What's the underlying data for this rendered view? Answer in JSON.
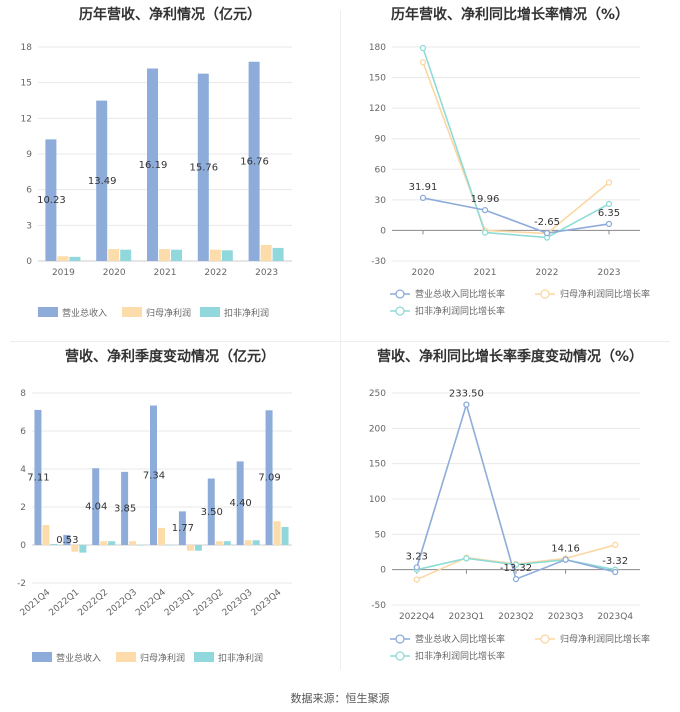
{
  "source": "数据来源：恒生聚源",
  "colors": {
    "revenue": "#8eacda",
    "parent_profit": "#fbdcaa",
    "deducted_profit": "#90d8db",
    "revenue_line": "#8eacda",
    "parent_line": "#fbd7a3",
    "deducted_line": "#8fdcd6",
    "grid": "#e8e8e8",
    "axis_text": "#666666"
  },
  "chart_data": [
    {
      "type": "bar",
      "title": "历年营收、净利情况（亿元）",
      "categories": [
        "2019",
        "2020",
        "2021",
        "2022",
        "2023"
      ],
      "ylim": [
        0,
        18
      ],
      "yticks": [
        0,
        3,
        6,
        9,
        12,
        15,
        18
      ],
      "grid": true,
      "legend_position": "bottom",
      "series": [
        {
          "name": "营业总收入",
          "values": [
            10.23,
            13.49,
            16.19,
            15.76,
            16.76
          ],
          "labels": [
            "10.23",
            "13.49",
            "16.19",
            "15.76",
            "16.76"
          ]
        },
        {
          "name": "归母净利润",
          "values": [
            0.4,
            1.0,
            1.0,
            0.95,
            1.35
          ]
        },
        {
          "name": "扣非净利润",
          "values": [
            0.35,
            0.95,
            0.95,
            0.9,
            1.1
          ]
        }
      ]
    },
    {
      "type": "line",
      "title": "历年营收、净利同比增长率情况（%）",
      "categories": [
        "2020",
        "2021",
        "2022",
        "2023"
      ],
      "ylim": [
        -30,
        180
      ],
      "yticks": [
        -30,
        0,
        30,
        60,
        90,
        120,
        150,
        180
      ],
      "grid": true,
      "legend_position": "bottom",
      "series": [
        {
          "name": "营业总收入同比增长率",
          "values": [
            31.91,
            19.96,
            -2.65,
            6.35
          ],
          "labels": [
            "31.91",
            "19.96",
            "-2.65",
            "6.35"
          ]
        },
        {
          "name": "归母净利润同比增长率",
          "values": [
            165,
            0,
            -3,
            47
          ]
        },
        {
          "name": "扣非净利润同比增长率",
          "values": [
            179,
            -2,
            -7,
            26
          ]
        }
      ]
    },
    {
      "type": "bar",
      "title": "营收、净利季度变动情况（亿元）",
      "categories": [
        "2021Q4",
        "2022Q1",
        "2022Q2",
        "2022Q3",
        "2022Q4",
        "2023Q1",
        "2023Q2",
        "2023Q3",
        "2023Q4"
      ],
      "ylim": [
        -2,
        8
      ],
      "yticks": [
        -2,
        0,
        2,
        4,
        6,
        8
      ],
      "grid": true,
      "legend_position": "bottom",
      "series": [
        {
          "name": "营业总收入",
          "values": [
            7.11,
            0.53,
            4.04,
            3.85,
            7.34,
            1.77,
            3.5,
            4.4,
            7.09
          ],
          "labels": [
            "7.11",
            "0.53",
            "4.04",
            "3.85",
            "7.34",
            "1.77",
            "3.50",
            "4.40",
            "7.09"
          ]
        },
        {
          "name": "归母净利润",
          "values": [
            1.05,
            -0.35,
            0.2,
            0.2,
            0.9,
            -0.3,
            0.2,
            0.25,
            1.25
          ]
        },
        {
          "name": "扣非净利润",
          "values": [
            0.05,
            -0.4,
            0.2,
            0.0,
            0.0,
            -0.3,
            0.2,
            0.25,
            0.95
          ]
        }
      ]
    },
    {
      "type": "line",
      "title": "营收、净利同比增长率季度变动情况（%）",
      "categories": [
        "2022Q4",
        "2023Q1",
        "2023Q2",
        "2023Q3",
        "2023Q4"
      ],
      "ylim": [
        -50,
        250
      ],
      "yticks": [
        -50,
        0,
        50,
        100,
        150,
        200,
        250
      ],
      "grid": true,
      "legend_position": "bottom",
      "series": [
        {
          "name": "营业总收入同比增长率",
          "values": [
            3.23,
            233.5,
            -13.32,
            14.16,
            -3.32
          ],
          "labels": [
            "3.23",
            "233.50",
            "-13.32",
            "14.16",
            "-3.32"
          ]
        },
        {
          "name": "归母净利润同比增长率",
          "values": [
            -14,
            17,
            8,
            16,
            35
          ]
        },
        {
          "name": "扣非净利润同比增长率",
          "values": [
            0,
            16,
            7,
            14,
            0
          ]
        }
      ]
    }
  ]
}
